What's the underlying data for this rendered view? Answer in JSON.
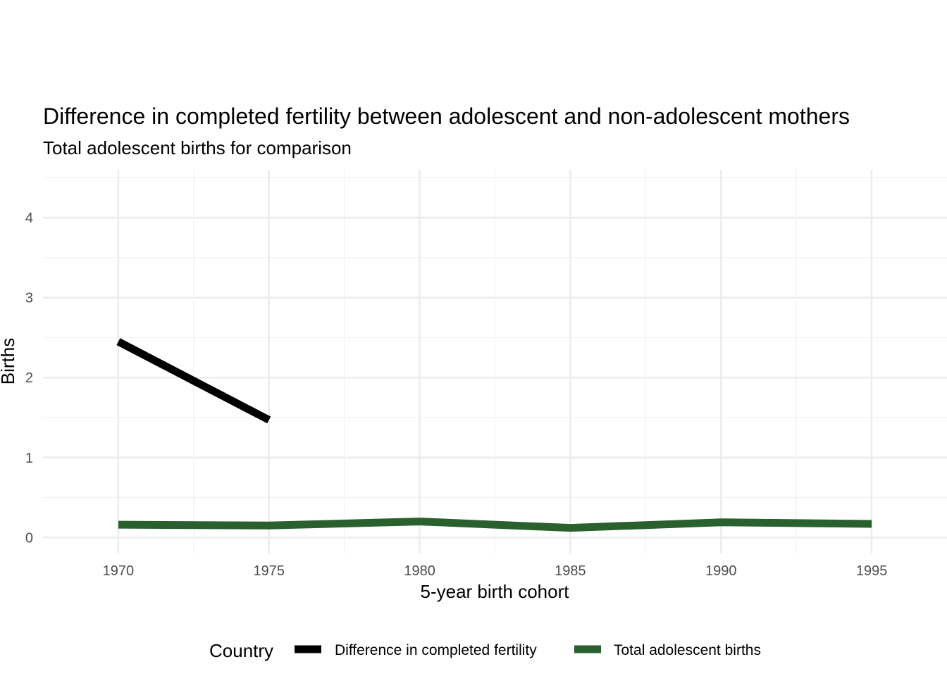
{
  "chart_data": {
    "type": "line",
    "title": "Difference in completed fertility between adolescent and non-adolescent mothers",
    "subtitle": "Total adolescent births for comparison",
    "xlabel": "5-year birth cohort",
    "ylabel": "Births",
    "x": [
      1970,
      1975,
      1980,
      1985,
      1990,
      1995
    ],
    "xlim": [
      1967.5,
      1997.5
    ],
    "ylim": [
      -0.2,
      4.6
    ],
    "x_ticks": [
      "1970",
      "1975",
      "1980",
      "1985",
      "1990",
      "1995"
    ],
    "y_ticks": [
      "0",
      "1",
      "2",
      "3",
      "4"
    ],
    "grid": true,
    "legend": {
      "title": "Country",
      "position": "bottom"
    },
    "series": [
      {
        "name": "Difference in completed fertility",
        "color": "#000000",
        "values": [
          2.45,
          1.47,
          null,
          null,
          null,
          null
        ]
      },
      {
        "name": "Total adolescent births",
        "color": "#2a5f2e",
        "values": [
          0.16,
          0.15,
          0.2,
          0.12,
          0.19,
          0.17
        ]
      }
    ]
  }
}
